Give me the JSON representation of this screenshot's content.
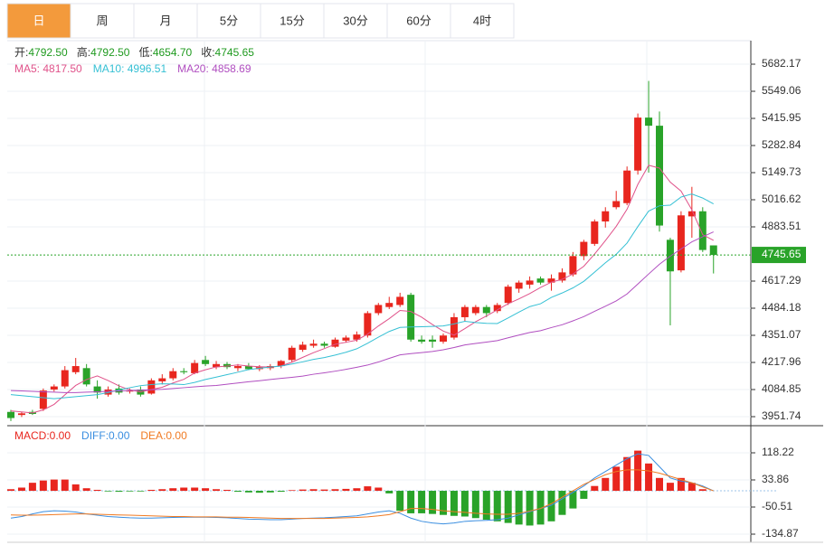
{
  "tabs": [
    "日",
    "周",
    "月",
    "5分",
    "15分",
    "30分",
    "60分",
    "4时"
  ],
  "active_tab": 0,
  "ohlc_info": [
    {
      "label": "开:",
      "value": "4792.50"
    },
    {
      "label": "高:",
      "value": "4792.50"
    },
    {
      "label": "低:",
      "value": "4654.70"
    },
    {
      "label": "收:",
      "value": "4745.65"
    }
  ],
  "chart_data": [
    {
      "type": "candlestick",
      "up_color": "#e8261e",
      "down_color": "#29a329",
      "open": [
        3975,
        3960,
        3975,
        3990,
        4085,
        4100,
        4170,
        4190,
        4100,
        4060,
        4090,
        4075,
        4085,
        4065,
        4125,
        4140,
        4175,
        4165,
        4230,
        4195,
        4210,
        4190,
        4200,
        4185,
        4190,
        4200,
        4230,
        4280,
        4300,
        4310,
        4295,
        4325,
        4330,
        4350,
        4460,
        4490,
        4500,
        4550,
        4330,
        4330,
        4320,
        4340,
        4440,
        4460,
        4490,
        4470,
        4510,
        4580,
        4600,
        4630,
        4610,
        4620,
        4650,
        4740,
        4800,
        4910,
        4980,
        5000,
        5160,
        5420,
        5380,
        4820,
        4670,
        4935,
        4960,
        4792.5
      ],
      "high": [
        3985,
        3975,
        3985,
        4090,
        4110,
        4200,
        4240,
        4210,
        4130,
        4100,
        4110,
        4090,
        4100,
        4140,
        4160,
        4190,
        4190,
        4230,
        4250,
        4225,
        4220,
        4210,
        4215,
        4205,
        4210,
        4230,
        4300,
        4320,
        4330,
        4320,
        4340,
        4350,
        4370,
        4470,
        4510,
        4540,
        4560,
        4560,
        4350,
        4350,
        4360,
        4460,
        4500,
        4500,
        4500,
        4510,
        4600,
        4620,
        4640,
        4640,
        4650,
        4680,
        4760,
        4820,
        4920,
        4980,
        5060,
        5180,
        5440,
        5600,
        5450,
        4830,
        4960,
        5080,
        4980,
        4792.5
      ],
      "low": [
        3930,
        3950,
        3960,
        3980,
        4075,
        4090,
        4160,
        4100,
        4040,
        4050,
        4060,
        4065,
        4050,
        4060,
        4110,
        4130,
        4160,
        4160,
        4200,
        4185,
        4185,
        4175,
        4180,
        4175,
        4180,
        4190,
        4220,
        4270,
        4290,
        4290,
        4290,
        4315,
        4320,
        4340,
        4450,
        4480,
        4490,
        4320,
        4310,
        4290,
        4310,
        4330,
        4420,
        4450,
        4440,
        4460,
        4500,
        4560,
        4580,
        4600,
        4570,
        4610,
        4640,
        4720,
        4790,
        4880,
        4970,
        4990,
        5140,
        5150,
        4860,
        4400,
        4660,
        4830,
        4760,
        4654.7
      ],
      "close": [
        3945,
        3968,
        3965,
        4080,
        4100,
        4180,
        4200,
        4110,
        4070,
        4085,
        4070,
        4080,
        4060,
        4130,
        4140,
        4175,
        4170,
        4215,
        4210,
        4210,
        4195,
        4200,
        4185,
        4195,
        4200,
        4225,
        4290,
        4305,
        4310,
        4300,
        4330,
        4340,
        4355,
        4460,
        4500,
        4510,
        4540,
        4330,
        4320,
        4320,
        4350,
        4440,
        4490,
        4490,
        4460,
        4500,
        4590,
        4610,
        4620,
        4610,
        4630,
        4660,
        4740,
        4810,
        4910,
        4960,
        5010,
        5160,
        5420,
        5380,
        4890,
        4665,
        4940,
        4960,
        4770,
        4745.65
      ],
      "series": [
        {
          "name": "MA5: 4817.50",
          "color": "#e0528a",
          "values": [
            3980,
            3975,
            3970,
            3985,
            4012,
            4059,
            4105,
            4134,
            4152,
            4129,
            4103,
            4083,
            4073,
            4085,
            4096,
            4117,
            4135,
            4166,
            4182,
            4196,
            4200,
            4206,
            4200,
            4197,
            4195,
            4201,
            4219,
            4243,
            4266,
            4286,
            4307,
            4317,
            4327,
            4357,
            4397,
            4433,
            4473,
            4468,
            4440,
            4404,
            4372,
            4352,
            4384,
            4418,
            4446,
            4476,
            4506,
            4530,
            4556,
            4586,
            4612,
            4626,
            4652,
            4690,
            4750,
            4816,
            4886,
            4970,
            5092,
            5186,
            5172,
            5103,
            5059,
            4967,
            4845,
            4817.5
          ]
        },
        {
          "name": "MA10: 4996.51",
          "color": "#35c0d4",
          "values": [
            4060,
            4055,
            4050,
            4045,
            4040,
            4045,
            4050,
            4055,
            4060,
            4070,
            4083,
            4094,
            4104,
            4109,
            4113,
            4112,
            4109,
            4120,
            4134,
            4146,
            4158,
            4170,
            4183,
            4189,
            4195,
            4200,
            4210,
            4221,
            4233,
            4242,
            4254,
            4268,
            4285,
            4312,
            4342,
            4370,
            4390,
            4392,
            4393,
            4395,
            4397,
            4407,
            4420,
            4414,
            4410,
            4409,
            4436,
            4465,
            4492,
            4506,
            4537,
            4559,
            4584,
            4616,
            4661,
            4707,
            4749,
            4804,
            4885,
            4961,
            4987,
            4990,
            5030,
            5045,
            5025,
            4996.51
          ]
        },
        {
          "name": "MA20: 4858.69",
          "color": "#b04ec0",
          "values": [
            4080,
            4078,
            4076,
            4074,
            4072,
            4070,
            4070,
            4072,
            4074,
            4076,
            4078,
            4080,
            4082,
            4084,
            4086,
            4090,
            4094,
            4098,
            4102,
            4105,
            4111,
            4117,
            4123,
            4128,
            4134,
            4140,
            4145,
            4151,
            4160,
            4167,
            4175,
            4184,
            4194,
            4205,
            4220,
            4238,
            4255,
            4261,
            4266,
            4272,
            4280,
            4291,
            4304,
            4311,
            4318,
            4325,
            4339,
            4352,
            4365,
            4374,
            4389,
            4403,
            4422,
            4443,
            4469,
            4494,
            4520,
            4554,
            4603,
            4652,
            4700,
            4740,
            4775,
            4810,
            4835,
            4858.69
          ]
        }
      ],
      "last_price": 4745.65,
      "ylim": [
        3911.8,
        5797.6
      ],
      "yticks": [
        3951.74,
        4084.85,
        4217.96,
        4351.07,
        4484.18,
        4617.29,
        4883.51,
        5016.62,
        5149.73,
        5282.84,
        5415.95,
        5549.06,
        5682.17
      ],
      "grid": true
    },
    {
      "type": "macd",
      "legend": [
        {
          "text": "MACD:0.00",
          "color": "#e8261e"
        },
        {
          "text": "DIFF:0.00",
          "color": "#3a8ee0"
        },
        {
          "text": "DEA:0.00",
          "color": "#f07a22"
        }
      ],
      "values": [
        5,
        10,
        25,
        32,
        35,
        35,
        20,
        8,
        3,
        -2,
        -3,
        -2,
        -2,
        3,
        5,
        8,
        10,
        10,
        8,
        5,
        3,
        -3,
        -5,
        -6,
        -5,
        -3,
        2,
        4,
        5,
        4,
        5,
        6,
        8,
        14,
        10,
        -8,
        -62,
        -70,
        -70,
        -72,
        -75,
        -78,
        -80,
        -85,
        -90,
        -95,
        -100,
        -105,
        -108,
        -105,
        -95,
        -75,
        -55,
        -25,
        15,
        40,
        75,
        105,
        125,
        85,
        40,
        25,
        40,
        25,
        5,
        0
      ],
      "series": [
        {
          "name": "DIFF",
          "color": "#3a8ee0",
          "values": [
            -85,
            -80,
            -72,
            -65,
            -62,
            -63,
            -66,
            -72,
            -76,
            -80,
            -82,
            -84,
            -85,
            -85,
            -84,
            -83,
            -82,
            -82,
            -82,
            -83,
            -84,
            -86,
            -88,
            -89,
            -90,
            -90,
            -88,
            -86,
            -85,
            -84,
            -82,
            -80,
            -78,
            -72,
            -66,
            -62,
            -70,
            -85,
            -95,
            -100,
            -103,
            -100,
            -95,
            -93,
            -92,
            -90,
            -85,
            -75,
            -65,
            -55,
            -45,
            -25,
            -5,
            15,
            40,
            60,
            80,
            100,
            115,
            110,
            75,
            40,
            30,
            25,
            15,
            0
          ]
        },
        {
          "name": "DEA",
          "color": "#f07a22",
          "values": [
            -75,
            -76,
            -76,
            -75,
            -74,
            -73,
            -72,
            -72,
            -73,
            -74,
            -75,
            -76,
            -77,
            -78,
            -79,
            -80,
            -80,
            -81,
            -81,
            -81,
            -82,
            -82,
            -83,
            -84,
            -85,
            -86,
            -86,
            -86,
            -86,
            -86,
            -85,
            -84,
            -83,
            -81,
            -78,
            -74,
            -65,
            -55,
            -55,
            -58,
            -62,
            -65,
            -67,
            -70,
            -72,
            -73,
            -73,
            -70,
            -63,
            -55,
            -40,
            -20,
            0,
            20,
            35,
            50,
            60,
            65,
            65,
            62,
            55,
            45,
            35,
            25,
            12,
            0
          ]
        }
      ],
      "ylim": [
        -160.2,
        199.8
      ],
      "yticks": [
        -134.87,
        -50.51,
        33.86,
        118.22
      ],
      "grid": true
    }
  ]
}
